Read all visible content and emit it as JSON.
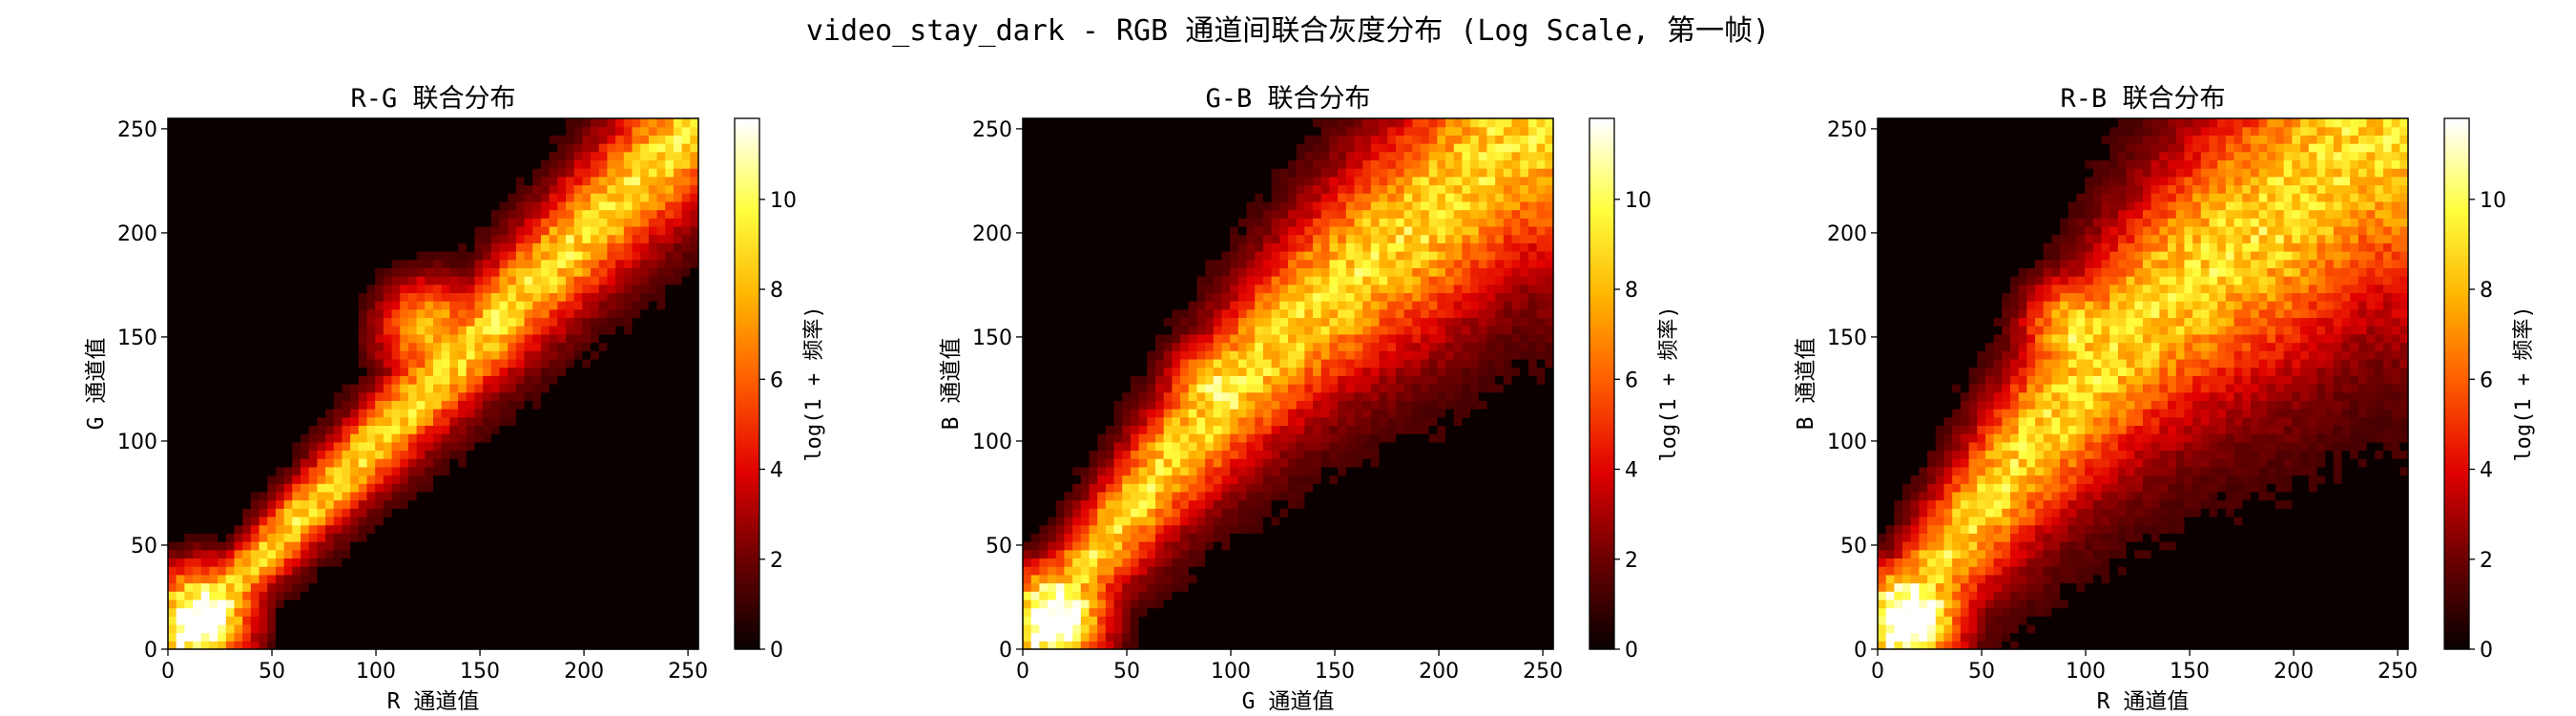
{
  "suptitle": "video_stay_dark - RGB 通道间联合灰度分布 (Log Scale, 第一帧)",
  "colormap": "hot",
  "colormap_stops": [
    "#0a0000",
    "#6b0000",
    "#e00000",
    "#ff5a00",
    "#ffb400",
    "#ffff40",
    "#ffffff"
  ],
  "chart_data": [
    {
      "type": "heatmap",
      "title": "R-G 联合分布",
      "xlabel": "R 通道值",
      "ylabel": "G 通道值",
      "xlim": [
        0,
        255
      ],
      "ylim": [
        0,
        255
      ],
      "xticks": [
        "0",
        "50",
        "100",
        "150",
        "200",
        "250"
      ],
      "yticks": [
        "0",
        "50",
        "100",
        "150",
        "200",
        "250"
      ],
      "bins": 64,
      "colorbar_label": "log(1 + 频率)",
      "colorbar_range": [
        0,
        11.8
      ],
      "colorbar_ticks": [
        "0",
        "2",
        "4",
        "6",
        "8",
        "10"
      ],
      "ridge_shift": 0,
      "band_width": [
        8,
        24
      ],
      "hotspots": [
        {
          "x": 15,
          "y": 15,
          "v": 11.6
        },
        {
          "x": 125,
          "y": 155,
          "v": 7.2
        }
      ]
    },
    {
      "type": "heatmap",
      "title": "G-B 联合分布",
      "xlabel": "G 通道值",
      "ylabel": "B 通道值",
      "xlim": [
        0,
        255
      ],
      "ylim": [
        0,
        255
      ],
      "xticks": [
        "0",
        "50",
        "100",
        "150",
        "200",
        "250"
      ],
      "yticks": [
        "0",
        "50",
        "100",
        "150",
        "200",
        "250"
      ],
      "bins": 64,
      "colorbar_label": "log(1 + 频率)",
      "colorbar_range": [
        0,
        11.8
      ],
      "colorbar_ticks": [
        "0",
        "2",
        "4",
        "6",
        "8",
        "10"
      ],
      "ridge_shift": 25,
      "band_width": [
        14,
        42
      ],
      "hotspots": [
        {
          "x": 15,
          "y": 15,
          "v": 11.4
        },
        {
          "x": 95,
          "y": 125,
          "v": 7.6
        }
      ]
    },
    {
      "type": "heatmap",
      "title": "R-B 联合分布",
      "xlabel": "R 通道值",
      "ylabel": "B 通道值",
      "xlim": [
        0,
        255
      ],
      "ylim": [
        0,
        255
      ],
      "xticks": [
        "0",
        "50",
        "100",
        "150",
        "200",
        "250"
      ],
      "yticks": [
        "0",
        "50",
        "100",
        "150",
        "200",
        "250"
      ],
      "bins": 64,
      "colorbar_label": "log(1 + 频率)",
      "colorbar_range": [
        0,
        11.8
      ],
      "colorbar_ticks": [
        "0",
        "2",
        "4",
        "6",
        "8",
        "10"
      ],
      "ridge_shift": 30,
      "band_width": [
        18,
        55
      ],
      "hotspots": [
        {
          "x": 15,
          "y": 15,
          "v": 11.6
        },
        {
          "x": 95,
          "y": 155,
          "v": 7.4
        }
      ]
    }
  ]
}
